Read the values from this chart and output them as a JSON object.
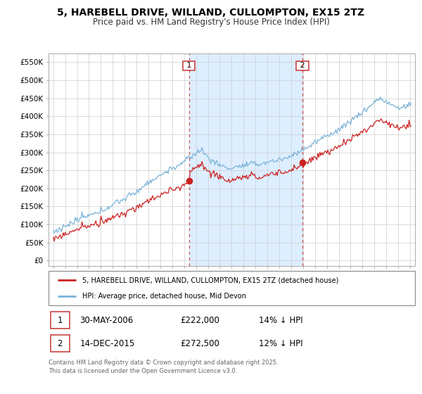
{
  "title": "5, HAREBELL DRIVE, WILLAND, CULLOMPTON, EX15 2TZ",
  "subtitle": "Price paid vs. HM Land Registry's House Price Index (HPI)",
  "yticks": [
    0,
    50000,
    100000,
    150000,
    200000,
    250000,
    300000,
    350000,
    400000,
    450000,
    500000,
    550000
  ],
  "ytick_labels": [
    "£0",
    "£50K",
    "£100K",
    "£150K",
    "£200K",
    "£250K",
    "£300K",
    "£350K",
    "£400K",
    "£450K",
    "£500K",
    "£550K"
  ],
  "hpi_color": "#7ab4d8",
  "price_color": "#cc2222",
  "vline_color": "#cc4444",
  "shade_color": "#ddeeff",
  "transaction1_year": 2006.41,
  "transaction1_price": 222000,
  "transaction2_year": 2015.95,
  "transaction2_price": 272500,
  "legend_line1": "5, HAREBELL DRIVE, WILLAND, CULLOMPTON, EX15 2TZ (detached house)",
  "legend_line2": "HPI: Average price, detached house, Mid Devon",
  "note1_date": "30-MAY-2006",
  "note1_price": "£222,000",
  "note1_hpi": "14% ↓ HPI",
  "note2_date": "14-DEC-2015",
  "note2_price": "£272,500",
  "note2_hpi": "12% ↓ HPI",
  "footer": "Contains HM Land Registry data © Crown copyright and database right 2025.\nThis data is licensed under the Open Government Licence v3.0.",
  "background_color": "#ffffff"
}
